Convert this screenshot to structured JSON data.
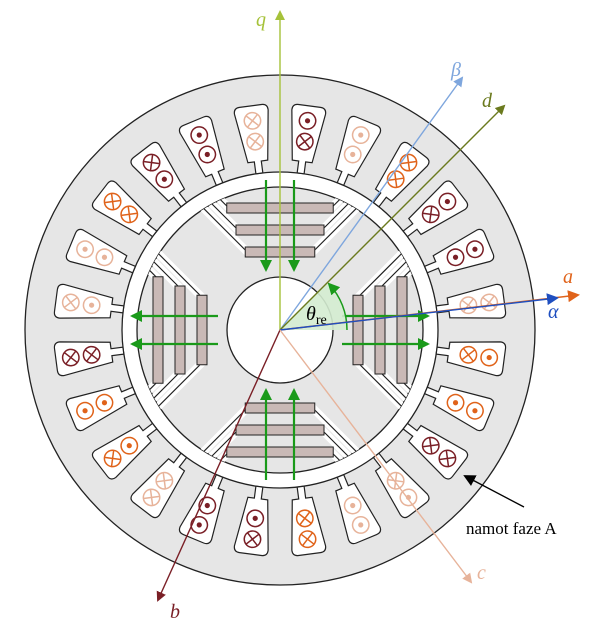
{
  "axes": {
    "q": "q",
    "beta": "β",
    "d": "d",
    "a": "a",
    "alpha": "α",
    "b": "b",
    "c": "c"
  },
  "angle_label": {
    "base": "θ",
    "sub": "re"
  },
  "annotation": "namot faze A",
  "colors": {
    "stator": "#e6e6e6",
    "rotor_lamination": "#e6e6e6",
    "magnet": "#c9b9b6",
    "flux_arrow": "#1a9a1a",
    "axis_q": "#a6c23a",
    "axis_beta": "#7ea6dd",
    "axis_d": "#6b7a1e",
    "axis_a": "#e0631a",
    "axis_alpha": "#1f4fc0",
    "axis_b": "#7a1f26",
    "axis_c": "#e7b39a",
    "phase_a": "#e0631a",
    "phase_b": "#7a1f26",
    "phase_c": "#e7b39a"
  },
  "slots": [
    {
      "phase": "b",
      "outer": "dot",
      "inner": "cross"
    },
    {
      "phase": "c",
      "outer": "dot",
      "inner": "dot"
    },
    {
      "phase": "a",
      "outer": "cross",
      "inner": "cross"
    },
    {
      "phase": "b",
      "outer": "dot",
      "inner": "cross"
    },
    {
      "phase": "b",
      "outer": "dot",
      "inner": "dot"
    },
    {
      "phase": "c",
      "outer": "cross",
      "inner": "cross"
    },
    {
      "phase": "a",
      "outer": "dot",
      "inner": "cross"
    },
    {
      "phase": "a",
      "outer": "dot",
      "inner": "dot"
    },
    {
      "phase": "b",
      "outer": "cross",
      "inner": "cross"
    },
    {
      "phase": "c",
      "outer": "dot",
      "inner": "cross"
    },
    {
      "phase": "c",
      "outer": "dot",
      "inner": "dot"
    },
    {
      "phase": "a",
      "outer": "cross",
      "inner": "cross"
    },
    {
      "phase": "b",
      "outer": "cross",
      "inner": "dot"
    },
    {
      "phase": "b",
      "outer": "dot",
      "inner": "dot"
    },
    {
      "phase": "c",
      "outer": "cross",
      "inner": "cross"
    },
    {
      "phase": "a",
      "outer": "cross",
      "inner": "dot"
    },
    {
      "phase": "a",
      "outer": "dot",
      "inner": "dot"
    },
    {
      "phase": "b",
      "outer": "cross",
      "inner": "cross"
    },
    {
      "phase": "c",
      "outer": "cross",
      "inner": "dot"
    },
    {
      "phase": "c",
      "outer": "dot",
      "inner": "dot"
    },
    {
      "phase": "a",
      "outer": "cross",
      "inner": "cross"
    },
    {
      "phase": "b",
      "outer": "cross",
      "inner": "dot"
    },
    {
      "phase": "b",
      "outer": "dot",
      "inner": "dot"
    },
    {
      "phase": "c",
      "outer": "cross",
      "inner": "cross"
    }
  ]
}
